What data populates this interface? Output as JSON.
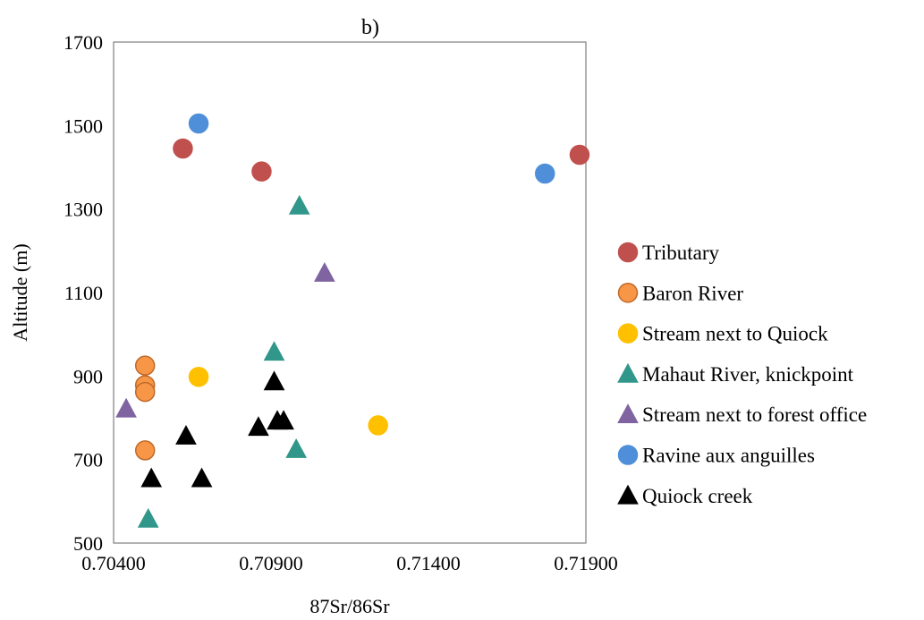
{
  "chart_data": {
    "type": "scatter",
    "title": "b)",
    "xlabel": "87Sr/86Sr",
    "ylabel": "Altitude (m)",
    "xlim": [
      0.704,
      0.719
    ],
    "ylim": [
      500,
      1700
    ],
    "xticks": [
      "0.70400",
      "0.70900",
      "0.71400",
      "0.71900"
    ],
    "xtick_values": [
      0.704,
      0.709,
      0.714,
      0.719
    ],
    "yticks": [
      "500",
      "700",
      "900",
      "1100",
      "1300",
      "1500",
      "1700"
    ],
    "ytick_values": [
      500,
      700,
      900,
      1100,
      1300,
      1500,
      1700
    ],
    "grid": false,
    "legend_position": "right",
    "series": [
      {
        "name": "Tributary",
        "marker": "circle",
        "color": "#c0504d",
        "outline": "#c0504d",
        "points": [
          [
            0.7062,
            1445
          ],
          [
            0.7087,
            1390
          ],
          [
            0.7188,
            1430
          ]
        ]
      },
      {
        "name": "Baron River",
        "marker": "circle",
        "color": "#f79646",
        "outline": "#c0692a",
        "points": [
          [
            0.705,
            925
          ],
          [
            0.705,
            878
          ],
          [
            0.705,
            862
          ],
          [
            0.705,
            722
          ]
        ]
      },
      {
        "name": "Stream next to Quiock",
        "marker": "circle",
        "color": "#ffc000",
        "outline": "#ffc000",
        "points": [
          [
            0.7067,
            898
          ],
          [
            0.7124,
            782
          ]
        ]
      },
      {
        "name": "Mahaut River, knickpoint",
        "marker": "triangle",
        "color": "#31978a",
        "outline": "#31978a",
        "points": [
          [
            0.7099,
            1308
          ],
          [
            0.7091,
            958
          ],
          [
            0.7098,
            725
          ],
          [
            0.7051,
            558
          ]
        ]
      },
      {
        "name": "Stream next to forest office",
        "marker": "triangle",
        "color": "#8064a2",
        "outline": "#8064a2",
        "points": [
          [
            0.7107,
            1147
          ],
          [
            0.7044,
            822
          ]
        ]
      },
      {
        "name": "Ravine aux anguilles",
        "marker": "circle",
        "color": "#4f8fd9",
        "outline": "#4f8fd9",
        "points": [
          [
            0.7067,
            1505
          ],
          [
            0.7177,
            1385
          ]
        ]
      },
      {
        "name": "Quiock creek",
        "marker": "triangle",
        "color": "#000000",
        "outline": "#000000",
        "points": [
          [
            0.7091,
            887
          ],
          [
            0.7092,
            793
          ],
          [
            0.7094,
            793
          ],
          [
            0.7086,
            778
          ],
          [
            0.7063,
            757
          ],
          [
            0.7052,
            655
          ],
          [
            0.7068,
            655
          ]
        ]
      }
    ]
  }
}
